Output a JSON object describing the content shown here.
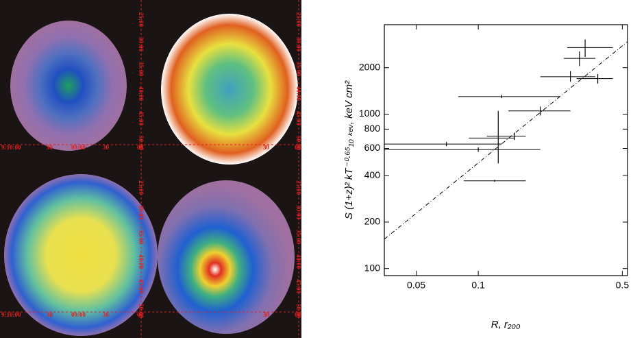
{
  "image_panels": {
    "ra_labels": [
      "9:10:00",
      "30",
      "09:00",
      "30",
      "00"
    ],
    "ra_labels_right": [
      "30",
      "00"
    ],
    "dec_labels": [
      "25:00",
      "30:00",
      "35:00",
      "40:00",
      "45:00",
      "50:00"
    ]
  },
  "chart_data": {
    "type": "errorbar-scatter",
    "xlabel": "R,  r₂₀₀",
    "ylabel": "S (1+z)² kT⁻⁰·⁶⁵₁₀ ₖₑᵥ,  keV cm²",
    "log_x": true,
    "log_y": true,
    "xlim": [
      0.035,
      0.53
    ],
    "xticks": [
      0.05,
      0.1,
      0.5
    ],
    "ylim": [
      90,
      3800
    ],
    "yticks": [
      100,
      200,
      400,
      600,
      800,
      1000,
      2000
    ],
    "color": "#000000",
    "x": [
      0.33,
      0.31,
      0.28,
      0.38,
      0.13,
      0.2,
      0.15,
      0.125,
      0.07,
      0.1,
      0.12
    ],
    "values": [
      2700,
      2300,
      1750,
      1700,
      1300,
      1050,
      720,
      700,
      640,
      590,
      370
    ],
    "x_low": [
      0.27,
      0.26,
      0.2,
      0.3,
      0.08,
      0.14,
      0.11,
      0.09,
      0.02,
      0.02,
      0.085
    ],
    "x_high": [
      0.45,
      0.37,
      0.37,
      0.45,
      0.25,
      0.28,
      0.17,
      0.15,
      0.13,
      0.2,
      0.17
    ],
    "y_low": [
      2350,
      2050,
      1620,
      1580,
      1270,
      980,
      680,
      480,
      620,
      570,
      365
    ],
    "y_high": [
      3050,
      2550,
      1900,
      1820,
      1330,
      1120,
      760,
      1050,
      660,
      610,
      375
    ],
    "fit": {
      "x": [
        0.035,
        0.53
      ],
      "values": [
        155,
        2950
      ]
    }
  }
}
